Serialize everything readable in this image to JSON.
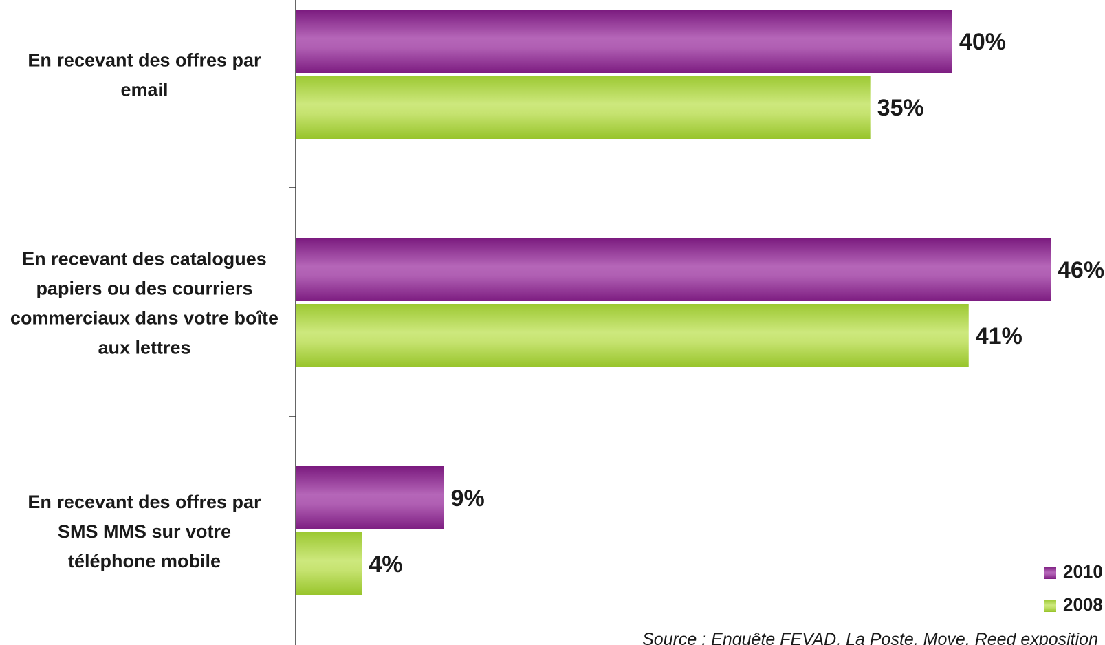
{
  "chart_data": {
    "type": "bar",
    "orientation": "horizontal",
    "categories": [
      [
        "En recevant des offres par",
        "email"
      ],
      [
        "En recevant des catalogues",
        "papiers ou des courriers",
        "commerciaux dans votre boîte",
        "aux lettres"
      ],
      [
        "En recevant des offres par",
        "SMS MMS sur votre",
        "téléphone mobile"
      ]
    ],
    "series": [
      {
        "name": "2010",
        "values": [
          40,
          46,
          9
        ],
        "labels": [
          "40%",
          "46%",
          "9%"
        ],
        "color": "#9b3d9f"
      },
      {
        "name": "2008",
        "values": [
          35,
          41,
          4
        ],
        "labels": [
          "35%",
          "41%",
          "4%"
        ],
        "color": "#a9d23a"
      }
    ],
    "xlim": [
      0,
      46
    ],
    "grid": false,
    "legend_position": "bottom-right",
    "source": "Source : Enquête FEVAD, La Poste, Move, Reed exposition"
  }
}
